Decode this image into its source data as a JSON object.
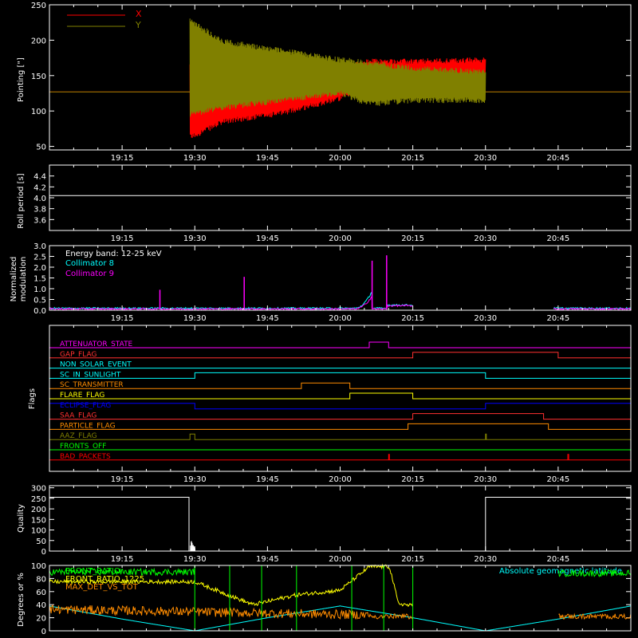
{
  "chart_data": [
    {
      "id": "pointing",
      "type": "line",
      "ylabel": "Pointing [\"]",
      "ylim": [
        45,
        250
      ],
      "yticks": [
        50,
        100,
        150,
        200,
        250
      ],
      "xticks": [
        "19:15",
        "19:30",
        "19:45",
        "20:00",
        "20:15",
        "20:30",
        "20:45"
      ],
      "legend_position": "top-left",
      "series": [
        {
          "name": "X",
          "color": "#ff0000",
          "baseline": 127,
          "start": "19:29",
          "end": "20:30",
          "upper": [
            [
              19.48,
              165
            ],
            [
              19.6,
              150
            ],
            [
              19.8,
              152
            ],
            [
              20.0,
              160
            ],
            [
              20.1,
              170
            ],
            [
              20.25,
              170
            ],
            [
              20.5,
              172
            ]
          ],
          "lower": [
            [
              19.48,
              62
            ],
            [
              19.6,
              85
            ],
            [
              19.8,
              97
            ],
            [
              20.0,
              118
            ],
            [
              20.1,
              132
            ],
            [
              20.25,
              145
            ],
            [
              20.5,
              150
            ]
          ]
        },
        {
          "name": "Y",
          "color": "#808000",
          "baseline": 127,
          "start": "19:29",
          "end": "20:30",
          "upper": [
            [
              19.48,
              228
            ],
            [
              19.6,
              198
            ],
            [
              19.8,
              185
            ],
            [
              20.0,
              172
            ],
            [
              20.1,
              168
            ],
            [
              20.25,
              160
            ],
            [
              20.5,
              155
            ]
          ],
          "lower": [
            [
              19.48,
              95
            ],
            [
              19.6,
              105
            ],
            [
              19.8,
              115
            ],
            [
              20.0,
              125
            ],
            [
              20.1,
              110
            ],
            [
              20.25,
              115
            ],
            [
              20.5,
              115
            ]
          ]
        }
      ]
    },
    {
      "id": "roll",
      "type": "line",
      "ylabel": "Roll period [s]",
      "ylim": [
        3.4,
        4.6
      ],
      "yticks": [
        3.6,
        3.8,
        4.0,
        4.2,
        4.4
      ],
      "xticks": [
        "19:15",
        "19:30",
        "19:45",
        "20:00",
        "20:15",
        "20:30",
        "20:45"
      ],
      "series": [
        {
          "name": "",
          "color": "#ffffff",
          "value": 4.04
        }
      ]
    },
    {
      "id": "modulation",
      "type": "line",
      "ylabel": [
        "Normalized",
        "modulation"
      ],
      "ylim": [
        0,
        3.0
      ],
      "yticks": [
        0.0,
        0.5,
        1.0,
        1.5,
        2.0,
        2.5,
        3.0
      ],
      "xticks": [
        "19:15",
        "19:30",
        "19:45",
        "20:00",
        "20:15",
        "20:30",
        "20:45"
      ],
      "annotation": "Energy band: 12-25 keV",
      "series": [
        {
          "name": "Collimator 8",
          "color": "#00ffff"
        },
        {
          "name": "Collimator 9",
          "color": "#ff00ff"
        }
      ],
      "spikes_c9": [
        [
          19.38,
          0.95
        ],
        [
          19.67,
          1.55
        ],
        [
          20.11,
          2.3
        ],
        [
          20.16,
          2.55
        ]
      ],
      "gaps": [
        [
          "20:15",
          "20:44"
        ]
      ]
    },
    {
      "id": "flags",
      "type": "line",
      "ylabel": "Flags",
      "xticks": [
        "19:15",
        "19:30",
        "19:45",
        "20:00",
        "20:15",
        "20:30",
        "20:45"
      ],
      "series": [
        {
          "name": "ATTENUATOR_STATE",
          "color": "#ff00ff",
          "high": [
            [
              "20:06",
              "20:10"
            ]
          ]
        },
        {
          "name": "GAP_FLAG",
          "color": "#ff3030",
          "high": [
            [
              "20:15",
              "20:45"
            ]
          ]
        },
        {
          "name": "NON_SOLAR_EVENT",
          "color": "#00ffff",
          "high": []
        },
        {
          "name": "SC_IN_SUNLIGHT",
          "color": "#00ffff",
          "high": [
            [
              "19:30",
              "20:30"
            ]
          ]
        },
        {
          "name": "SC_TRANSMITTER",
          "color": "#ff8c00",
          "high": [
            [
              "19:52",
              "20:02"
            ]
          ]
        },
        {
          "name": "FLARE_FLAG",
          "color": "#ffff00",
          "high": [
            [
              "20:02",
              "20:15"
            ]
          ]
        },
        {
          "name": "ECLIPSE_FLAG",
          "color": "#0000ff",
          "high": [
            [
              "19:00",
              "19:30"
            ],
            [
              "20:30",
              "21:00"
            ]
          ]
        },
        {
          "name": "SAA_FLAG",
          "color": "#ff3030",
          "high": [
            [
              "20:15",
              "20:42"
            ]
          ]
        },
        {
          "name": "PARTICLE_FLAG",
          "color": "#ff8c00",
          "high": [
            [
              "20:14",
              "20:43"
            ]
          ]
        },
        {
          "name": "AAZ_FLAG",
          "color": "#808000",
          "high": [
            [
              "19:29",
              "19:30"
            ],
            [
              "20:30",
              "20:30"
            ]
          ]
        },
        {
          "name": "FRONTS_OFF",
          "color": "#00ff00",
          "high": []
        },
        {
          "name": "BAD_PACKETS",
          "color": "#ff0000",
          "high": [
            [
              "20:10",
              "20:10"
            ],
            [
              "20:47",
              "20:47"
            ]
          ]
        }
      ]
    },
    {
      "id": "quality",
      "type": "line",
      "ylabel": "Quality",
      "ylim": [
        0,
        310
      ],
      "yticks": [
        0,
        50,
        100,
        150,
        200,
        250,
        300
      ],
      "xticks": [
        "19:15",
        "19:30",
        "19:45",
        "20:00",
        "20:15",
        "20:30",
        "20:45"
      ],
      "series": [
        {
          "name": "",
          "color": "#ffffff",
          "points": [
            [
              19.0,
              255
            ],
            [
              19.48,
              255
            ],
            [
              19.48,
              0
            ],
            [
              20.5,
              0
            ],
            [
              20.5,
              255
            ],
            [
              21.0,
              255
            ]
          ]
        }
      ]
    },
    {
      "id": "bottom",
      "type": "line",
      "ylabel": "Degrees or %",
      "ylim": [
        0,
        100
      ],
      "yticks": [
        0,
        20,
        40,
        60,
        80,
        100
      ],
      "series": [
        {
          "name": "FRONT_RATIO",
          "color": "#00ff00"
        },
        {
          "name": "FRONT_RATIO_1225",
          "color": "#ffff00"
        },
        {
          "name": "MAX_DET_VS_TOT",
          "color": "#ff8c00"
        },
        {
          "name": "Absolute geomagnetic latitude",
          "color": "#00ffff",
          "points": [
            [
              19.0,
              38
            ],
            [
              19.25,
              18
            ],
            [
              19.5,
              0
            ],
            [
              19.75,
              20
            ],
            [
              20.0,
              38
            ],
            [
              20.25,
              20
            ],
            [
              20.5,
              0
            ],
            [
              20.75,
              18
            ],
            [
              21.0,
              38
            ]
          ]
        }
      ]
    }
  ]
}
